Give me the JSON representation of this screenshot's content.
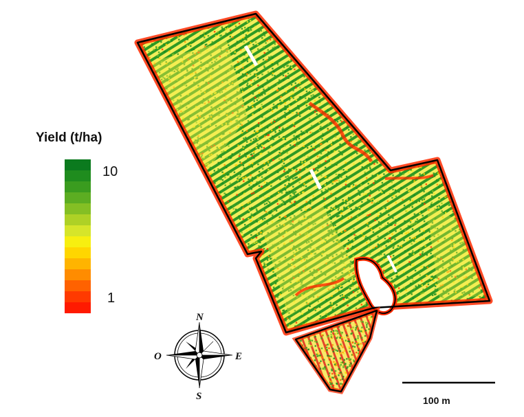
{
  "legend": {
    "title": "Yield (t/ha)",
    "max_label": "10",
    "min_label": "1",
    "ramp_colors": [
      "#0b7a1e",
      "#1f8c1e",
      "#3a9c1f",
      "#5cad22",
      "#84bf24",
      "#aed126",
      "#d6e52a",
      "#f7ef10",
      "#ffd600",
      "#ffb400",
      "#ff8c00",
      "#ff6200",
      "#ff3a00",
      "#ff1a00"
    ]
  },
  "compass": {
    "north_label": "N",
    "south_label": "S",
    "east_label": "E",
    "west_label": "O"
  },
  "scale_bar": {
    "label": "100 m"
  },
  "colors": {
    "field_outline": "#000000",
    "high_yield": "#1a8a1e",
    "low_yield": "#ff2200",
    "mid_yield": "#f0ea20"
  }
}
